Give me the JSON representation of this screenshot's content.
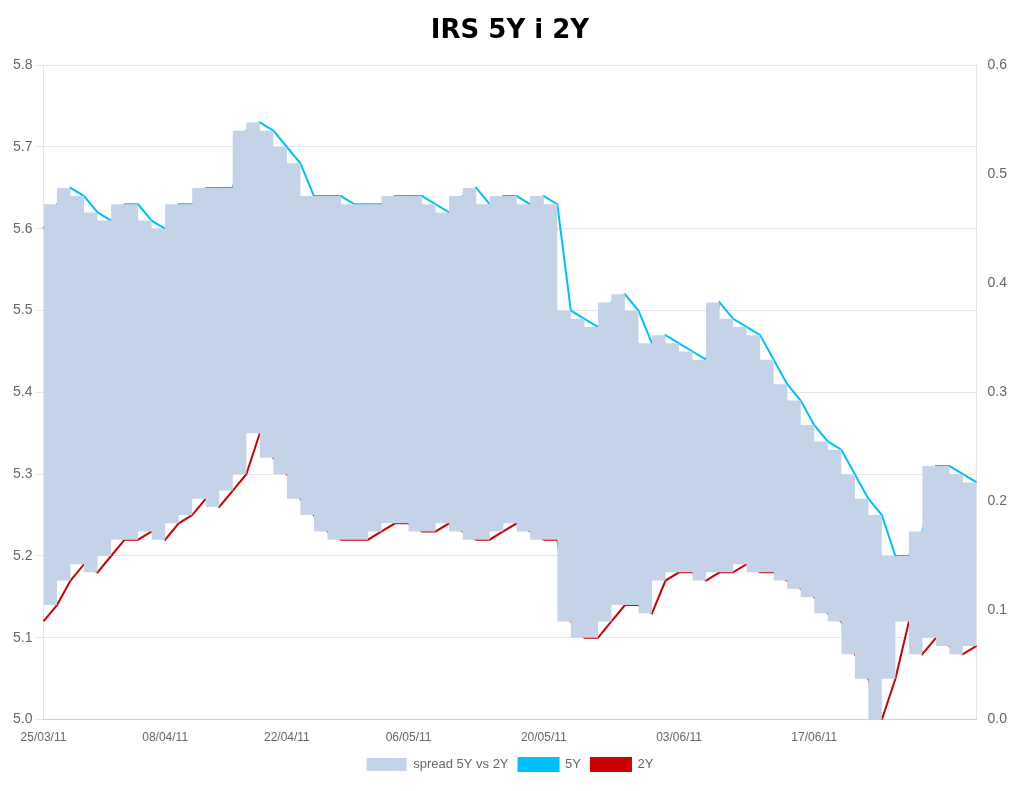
{
  "chart_data": {
    "type": "line",
    "title": "IRS 5Y i 2Y",
    "categories": [
      "25/03/11",
      null,
      null,
      null,
      null,
      null,
      null,
      null,
      null,
      "08/04/11",
      null,
      null,
      null,
      null,
      null,
      null,
      null,
      null,
      "22/04/11",
      null,
      null,
      null,
      null,
      null,
      null,
      null,
      null,
      "06/05/11",
      null,
      null,
      null,
      null,
      null,
      null,
      null,
      null,
      null,
      "20/05/11",
      null,
      null,
      null,
      null,
      null,
      null,
      null,
      null,
      null,
      "03/06/11",
      null,
      null,
      null,
      null,
      null,
      null,
      null,
      null,
      null,
      "17/06/11",
      null,
      null,
      null,
      null,
      null,
      null,
      null,
      null,
      null,
      null,
      null,
      null
    ],
    "series": [
      {
        "name": "spread 5Y vs 2Y",
        "type": "area",
        "line_style": "steps",
        "color": "#C5D3E8"
      },
      {
        "name": "5Y",
        "color": "#00BFFF",
        "values": [
          5.6,
          5.63,
          5.65,
          5.64,
          5.62,
          5.61,
          5.63,
          5.63,
          5.61,
          5.6,
          5.63,
          5.63,
          5.65,
          5.65,
          5.65,
          5.72,
          5.73,
          5.72,
          5.7,
          5.68,
          5.64,
          5.64,
          5.64,
          5.63,
          5.63,
          5.63,
          5.64,
          5.64,
          5.64,
          5.63,
          5.62,
          5.64,
          5.65,
          5.63,
          5.64,
          5.64,
          5.63,
          5.64,
          5.63,
          5.5,
          5.49,
          5.48,
          5.51,
          5.52,
          5.5,
          5.46,
          5.47,
          5.46,
          5.45,
          5.44,
          5.51,
          5.49,
          5.48,
          5.47,
          5.44,
          5.41,
          5.39,
          5.36,
          5.34,
          5.33,
          5.3,
          5.27,
          5.25,
          5.2,
          5.2,
          5.23,
          5.31,
          5.31,
          5.3,
          5.29
        ]
      },
      {
        "name": "2Y",
        "color": "#CC0000",
        "values": [
          5.12,
          5.14,
          5.17,
          5.19,
          5.18,
          5.2,
          5.22,
          5.22,
          5.23,
          5.22,
          5.24,
          5.25,
          5.27,
          5.26,
          5.28,
          5.3,
          5.35,
          5.32,
          5.3,
          5.27,
          5.25,
          5.23,
          5.22,
          5.22,
          5.22,
          5.23,
          5.24,
          5.24,
          5.23,
          5.23,
          5.24,
          5.23,
          5.22,
          5.22,
          5.23,
          5.24,
          5.23,
          5.22,
          5.22,
          5.12,
          5.1,
          5.1,
          5.12,
          5.14,
          5.14,
          5.13,
          5.17,
          5.18,
          5.18,
          5.17,
          5.18,
          5.18,
          5.19,
          5.18,
          5.18,
          5.17,
          5.16,
          5.15,
          5.13,
          5.12,
          5.08,
          5.05,
          5.0,
          5.05,
          5.12,
          5.08,
          5.1,
          5.09,
          5.08,
          5.09
        ]
      }
    ],
    "ylim": [
      5.0,
      5.8
    ],
    "yticks": [
      {
        "value": 5.0,
        "label": "5.0"
      },
      5.1,
      5.2,
      5.3,
      5.4,
      5.5,
      5.6,
      5.7,
      5.8
    ],
    "y2lim": [
      0.0,
      0.6
    ],
    "y2ticks": [
      {
        "value": 0.0,
        "label": "0.0"
      },
      0.1,
      0.2,
      0.3,
      0.4,
      0.5,
      0.6
    ],
    "grid": "y",
    "legend": "bottom"
  }
}
